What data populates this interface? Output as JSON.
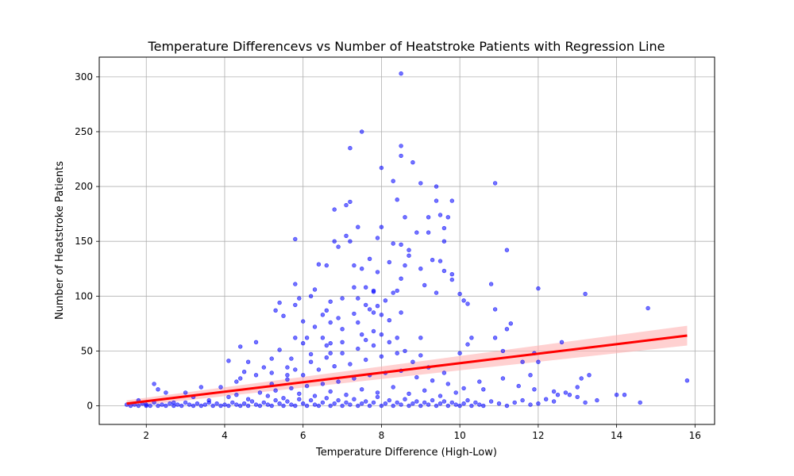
{
  "chart_data": {
    "type": "scatter",
    "title": "Temperature Differencevs vs Number of Heatstroke Patients with Regression Line",
    "xlabel": "Temperature Difference (High-Low)",
    "ylabel": "Number of Heatstroke Patients",
    "xlim": [
      0.8,
      16.5
    ],
    "ylim": [
      -17,
      318
    ],
    "xticks": [
      2,
      4,
      6,
      8,
      10,
      12,
      14,
      16
    ],
    "yticks": [
      0,
      50,
      100,
      150,
      200,
      250,
      300
    ],
    "grid": true,
    "colors": {
      "points": "#0000ff",
      "regression": "#ff0000",
      "ci_band": "#ffb3b3"
    },
    "regression": {
      "x": [
        1.5,
        15.8
      ],
      "y": [
        2,
        64
      ],
      "ci_halfwidth": [
        3,
        9
      ]
    },
    "points": [
      [
        1.5,
        1
      ],
      [
        1.8,
        5
      ],
      [
        2.2,
        20
      ],
      [
        2.3,
        15
      ],
      [
        2.5,
        12
      ],
      [
        2.7,
        3
      ],
      [
        3.0,
        12
      ],
      [
        3.2,
        8
      ],
      [
        3.4,
        17
      ],
      [
        3.6,
        5
      ],
      [
        3.9,
        17
      ],
      [
        4.1,
        41
      ],
      [
        4.3,
        22
      ],
      [
        4.4,
        25
      ],
      [
        4.4,
        54
      ],
      [
        4.5,
        31
      ],
      [
        4.6,
        40
      ],
      [
        4.8,
        28
      ],
      [
        4.8,
        58
      ],
      [
        5.0,
        35
      ],
      [
        5.2,
        43
      ],
      [
        5.2,
        30
      ],
      [
        5.3,
        87
      ],
      [
        5.4,
        94
      ],
      [
        5.4,
        51
      ],
      [
        5.5,
        82
      ],
      [
        5.6,
        35
      ],
      [
        5.6,
        28
      ],
      [
        5.7,
        43
      ],
      [
        5.8,
        62
      ],
      [
        5.8,
        92
      ],
      [
        5.8,
        152
      ],
      [
        5.8,
        111
      ],
      [
        5.9,
        98
      ],
      [
        6.0,
        77
      ],
      [
        6.0,
        57
      ],
      [
        6.1,
        62
      ],
      [
        6.2,
        47
      ],
      [
        6.2,
        100
      ],
      [
        6.3,
        106
      ],
      [
        6.3,
        72
      ],
      [
        6.4,
        129
      ],
      [
        6.5,
        83
      ],
      [
        6.5,
        62
      ],
      [
        6.6,
        128
      ],
      [
        6.6,
        87
      ],
      [
        6.7,
        76
      ],
      [
        6.7,
        95
      ],
      [
        6.7,
        48
      ],
      [
        6.7,
        57
      ],
      [
        6.8,
        150
      ],
      [
        6.8,
        179
      ],
      [
        6.9,
        145
      ],
      [
        6.9,
        80
      ],
      [
        7.0,
        70
      ],
      [
        7.0,
        98
      ],
      [
        7.0,
        58
      ],
      [
        7.1,
        155
      ],
      [
        7.1,
        183
      ],
      [
        7.2,
        235
      ],
      [
        7.2,
        186
      ],
      [
        7.2,
        150
      ],
      [
        7.3,
        128
      ],
      [
        7.3,
        108
      ],
      [
        7.3,
        84
      ],
      [
        7.4,
        163
      ],
      [
        7.4,
        98
      ],
      [
        7.4,
        76
      ],
      [
        7.5,
        250
      ],
      [
        7.5,
        125
      ],
      [
        7.5,
        65
      ],
      [
        7.6,
        92
      ],
      [
        7.6,
        108
      ],
      [
        7.7,
        134
      ],
      [
        7.7,
        88
      ],
      [
        7.8,
        104
      ],
      [
        7.8,
        105
      ],
      [
        7.8,
        85
      ],
      [
        7.8,
        68
      ],
      [
        7.9,
        153
      ],
      [
        7.9,
        122
      ],
      [
        7.9,
        91
      ],
      [
        8.0,
        217
      ],
      [
        8.0,
        163
      ],
      [
        8.0,
        83
      ],
      [
        8.0,
        65
      ],
      [
        8.1,
        96
      ],
      [
        8.2,
        131
      ],
      [
        8.2,
        78
      ],
      [
        8.3,
        205
      ],
      [
        8.3,
        148
      ],
      [
        8.3,
        103
      ],
      [
        8.4,
        188
      ],
      [
        8.4,
        105
      ],
      [
        8.5,
        303
      ],
      [
        8.5,
        228
      ],
      [
        8.5,
        237
      ],
      [
        8.5,
        147
      ],
      [
        8.5,
        116
      ],
      [
        8.5,
        85
      ],
      [
        8.6,
        172
      ],
      [
        8.6,
        128
      ],
      [
        8.7,
        142
      ],
      [
        8.7,
        137
      ],
      [
        8.8,
        222
      ],
      [
        8.9,
        158
      ],
      [
        9.0,
        203
      ],
      [
        9.0,
        125
      ],
      [
        9.1,
        110
      ],
      [
        9.2,
        172
      ],
      [
        9.2,
        158
      ],
      [
        9.3,
        133
      ],
      [
        9.4,
        187
      ],
      [
        9.4,
        200
      ],
      [
        9.4,
        103
      ],
      [
        9.5,
        174
      ],
      [
        9.5,
        132
      ],
      [
        9.6,
        150
      ],
      [
        9.6,
        162
      ],
      [
        9.6,
        123
      ],
      [
        9.7,
        172
      ],
      [
        9.8,
        187
      ],
      [
        9.8,
        120
      ],
      [
        9.8,
        115
      ],
      [
        10.0,
        102
      ],
      [
        10.1,
        96
      ],
      [
        10.2,
        93
      ],
      [
        10.8,
        111
      ],
      [
        10.9,
        203
      ],
      [
        10.9,
        88
      ],
      [
        11.2,
        142
      ],
      [
        11.3,
        75
      ],
      [
        11.2,
        70
      ],
      [
        12.0,
        107
      ],
      [
        12.6,
        58
      ],
      [
        13.2,
        102
      ],
      [
        14.8,
        89
      ],
      [
        15.8,
        23
      ],
      [
        10.0,
        48
      ],
      [
        10.2,
        56
      ],
      [
        10.3,
        62
      ],
      [
        10.9,
        62
      ],
      [
        11.1,
        50
      ],
      [
        11.6,
        40
      ],
      [
        11.8,
        28
      ],
      [
        11.9,
        48
      ],
      [
        12.0,
        40
      ],
      [
        13.1,
        25
      ],
      [
        13.3,
        28
      ],
      [
        12.4,
        13
      ],
      [
        12.8,
        10
      ],
      [
        13.0,
        17
      ],
      [
        13.5,
        5
      ],
      [
        14.0,
        10
      ],
      [
        14.2,
        10
      ],
      [
        14.6,
        3
      ],
      [
        13.2,
        3
      ],
      [
        12.5,
        10
      ],
      [
        11.9,
        15
      ],
      [
        11.5,
        18
      ],
      [
        11.1,
        25
      ],
      [
        10.5,
        22
      ],
      [
        10.6,
        15
      ],
      [
        1.6,
        0
      ],
      [
        1.7,
        1
      ],
      [
        1.8,
        0
      ],
      [
        1.9,
        2
      ],
      [
        2.0,
        0
      ],
      [
        2.0,
        1
      ],
      [
        2.1,
        0
      ],
      [
        2.2,
        3
      ],
      [
        2.3,
        0
      ],
      [
        2.4,
        1
      ],
      [
        2.5,
        0
      ],
      [
        2.6,
        2
      ],
      [
        2.7,
        0
      ],
      [
        2.8,
        1
      ],
      [
        2.9,
        0
      ],
      [
        3.0,
        3
      ],
      [
        3.1,
        1
      ],
      [
        3.2,
        0
      ],
      [
        3.3,
        2
      ],
      [
        3.4,
        0
      ],
      [
        3.5,
        1
      ],
      [
        3.6,
        3
      ],
      [
        3.7,
        0
      ],
      [
        3.8,
        2
      ],
      [
        3.9,
        0
      ],
      [
        4.0,
        1
      ],
      [
        4.1,
        0
      ],
      [
        4.2,
        3
      ],
      [
        4.3,
        1
      ],
      [
        4.4,
        0
      ],
      [
        4.5,
        2
      ],
      [
        4.6,
        0
      ],
      [
        4.7,
        4
      ],
      [
        4.8,
        1
      ],
      [
        4.9,
        0
      ],
      [
        5.0,
        3
      ],
      [
        5.1,
        1
      ],
      [
        5.2,
        0
      ],
      [
        5.3,
        5
      ],
      [
        5.4,
        2
      ],
      [
        5.5,
        0
      ],
      [
        5.6,
        4
      ],
      [
        5.7,
        1
      ],
      [
        5.8,
        0
      ],
      [
        5.9,
        6
      ],
      [
        6.0,
        2
      ],
      [
        6.1,
        0
      ],
      [
        6.2,
        5
      ],
      [
        6.3,
        1
      ],
      [
        6.4,
        0
      ],
      [
        6.5,
        3
      ],
      [
        6.6,
        7
      ],
      [
        6.7,
        0
      ],
      [
        6.8,
        2
      ],
      [
        6.9,
        5
      ],
      [
        7.0,
        0
      ],
      [
        7.1,
        3
      ],
      [
        7.2,
        1
      ],
      [
        7.3,
        6
      ],
      [
        7.4,
        0
      ],
      [
        7.5,
        2
      ],
      [
        7.6,
        4
      ],
      [
        7.7,
        0
      ],
      [
        7.8,
        3
      ],
      [
        7.9,
        8
      ],
      [
        8.0,
        0
      ],
      [
        8.1,
        2
      ],
      [
        8.2,
        5
      ],
      [
        8.3,
        0
      ],
      [
        8.4,
        3
      ],
      [
        8.5,
        1
      ],
      [
        8.6,
        6
      ],
      [
        8.7,
        0
      ],
      [
        8.8,
        2
      ],
      [
        8.9,
        4
      ],
      [
        9.0,
        0
      ],
      [
        9.1,
        3
      ],
      [
        9.2,
        1
      ],
      [
        9.3,
        5
      ],
      [
        9.4,
        0
      ],
      [
        9.5,
        2
      ],
      [
        9.6,
        4
      ],
      [
        9.7,
        0
      ],
      [
        9.8,
        3
      ],
      [
        9.9,
        1
      ],
      [
        10.0,
        0
      ],
      [
        10.1,
        2
      ],
      [
        10.2,
        5
      ],
      [
        10.3,
        0
      ],
      [
        10.4,
        3
      ],
      [
        10.5,
        1
      ],
      [
        10.6,
        0
      ],
      [
        10.8,
        4
      ],
      [
        11.0,
        2
      ],
      [
        11.2,
        0
      ],
      [
        11.4,
        3
      ],
      [
        11.6,
        5
      ],
      [
        11.8,
        1
      ],
      [
        12.0,
        2
      ],
      [
        12.2,
        6
      ],
      [
        12.4,
        4
      ],
      [
        12.7,
        12
      ],
      [
        13.0,
        8
      ],
      [
        4.1,
        8
      ],
      [
        4.3,
        10
      ],
      [
        4.6,
        6
      ],
      [
        4.9,
        12
      ],
      [
        5.1,
        9
      ],
      [
        5.3,
        14
      ],
      [
        5.5,
        7
      ],
      [
        5.7,
        16
      ],
      [
        5.9,
        11
      ],
      [
        6.1,
        18
      ],
      [
        6.3,
        9
      ],
      [
        6.5,
        20
      ],
      [
        6.7,
        13
      ],
      [
        6.9,
        22
      ],
      [
        7.1,
        10
      ],
      [
        7.3,
        25
      ],
      [
        7.5,
        15
      ],
      [
        7.7,
        28
      ],
      [
        7.9,
        12
      ],
      [
        8.1,
        30
      ],
      [
        8.3,
        17
      ],
      [
        8.5,
        32
      ],
      [
        8.7,
        11
      ],
      [
        8.9,
        26
      ],
      [
        9.1,
        14
      ],
      [
        9.3,
        23
      ],
      [
        9.5,
        9
      ],
      [
        9.7,
        20
      ],
      [
        9.9,
        12
      ],
      [
        10.1,
        16
      ],
      [
        5.2,
        20
      ],
      [
        5.6,
        24
      ],
      [
        6.0,
        28
      ],
      [
        6.4,
        33
      ],
      [
        6.8,
        36
      ],
      [
        7.2,
        38
      ],
      [
        7.6,
        42
      ],
      [
        8.0,
        45
      ],
      [
        8.4,
        48
      ],
      [
        8.8,
        40
      ],
      [
        9.2,
        35
      ],
      [
        9.6,
        30
      ],
      [
        6.2,
        40
      ],
      [
        6.6,
        44
      ],
      [
        7.0,
        48
      ],
      [
        7.4,
        52
      ],
      [
        7.8,
        55
      ],
      [
        8.2,
        58
      ],
      [
        8.6,
        50
      ],
      [
        9.0,
        46
      ],
      [
        5.8,
        33
      ],
      [
        6.6,
        55
      ],
      [
        7.6,
        60
      ],
      [
        8.4,
        62
      ],
      [
        9.0,
        62
      ]
    ]
  }
}
